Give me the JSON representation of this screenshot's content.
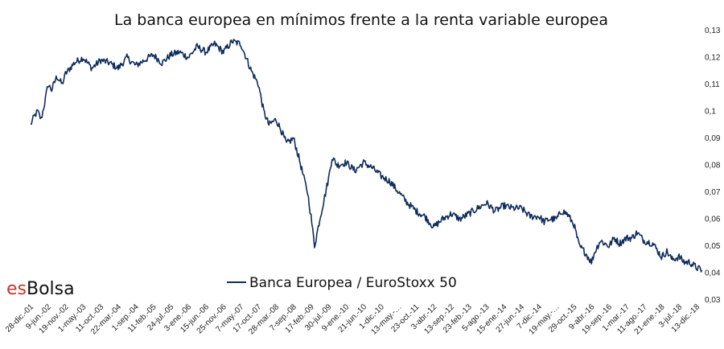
{
  "logo": {
    "prefix": "es",
    "suffix": "Bolsa",
    "prefix_color": "#c0392b",
    "suffix_color": "#111111"
  },
  "chart_data": {
    "type": "line",
    "title": "La banca europea en mínimos frente a la renta variable europea",
    "legend": "Banca Europea / EuroStoxx 50",
    "legend_position": "bottom-center",
    "grid": false,
    "y_axis_position": "right",
    "ylim": [
      0.03,
      0.13
    ],
    "yticks": [
      "0,13",
      "0,12",
      "0,11",
      "0,1",
      "0,09",
      "0,08",
      "0,07",
      "0,06",
      "0,05",
      "0,04",
      "0,03"
    ],
    "xticks": [
      "28-dic.-01",
      "9-jun.-02",
      "19-nov.-02",
      "1-may.-03",
      "11-oct.-03",
      "22-mar.-04",
      "1-sep.-04",
      "11-feb.-05",
      "24-jul.-05",
      "3-ene.-06",
      "15-jun.-06",
      "25-nov.-06",
      "7-may.-07",
      "17-oct.-07",
      "28-mar.-08",
      "7-sep.-08",
      "17-feb.-09",
      "30-jul.-09",
      "9-ene.-10",
      "21-jun.-10",
      "1-dic.-10",
      "13-may.-…",
      "23-oct.-11",
      "3-abr.-12",
      "13-sep.-12",
      "23-feb.-13",
      "5-ago.-13",
      "15-ene.-14",
      "27-jun.-14",
      "7-dic.-14",
      "19-may.-…",
      "29-oct.-15",
      "9-abr.-16",
      "19-sep.-16",
      "1-mar.-17",
      "11-ago.-17",
      "21-ene.-18",
      "3-jul.-18",
      "13-dic.-18"
    ],
    "series": [
      {
        "name": "Banca Europea / EuroStoxx 50",
        "color": "#0f2c5c",
        "x": [
          0,
          0.2,
          0.4,
          0.6,
          0.8,
          1.0,
          1.2,
          1.5,
          1.8,
          2.0,
          2.5,
          3.0,
          3.5,
          4.0,
          4.5,
          5.0,
          5.5,
          6.0,
          6.5,
          7.0,
          7.5,
          8.0,
          8.5,
          9.0,
          9.5,
          10.0,
          10.5,
          11.0,
          11.5,
          12.0,
          12.3,
          12.6,
          13.0,
          13.3,
          13.6,
          14.0,
          14.3,
          14.6,
          15.0,
          15.3,
          15.6,
          15.8,
          16.0,
          16.2,
          16.5,
          17.0,
          17.2,
          17.5,
          18.0,
          18.5,
          19.0,
          19.5,
          20.0,
          20.5,
          21.0,
          21.5,
          22.0,
          22.5,
          23.0,
          23.5,
          24.0,
          24.5,
          25.0,
          25.5,
          26.0,
          26.5,
          27.0,
          27.5,
          28.0,
          28.5,
          29.0,
          29.3,
          29.6,
          30.0,
          30.3,
          30.6,
          31.0,
          31.3,
          31.6,
          32.0,
          32.2,
          32.5,
          33.0,
          33.3,
          33.6,
          34.0,
          34.3,
          34.6,
          35.0,
          35.5,
          36.0,
          36.3,
          36.6,
          37.0,
          37.3,
          37.6,
          38.0,
          38.3
        ],
        "values": [
          0.095,
          0.098,
          0.1,
          0.097,
          0.103,
          0.11,
          0.108,
          0.113,
          0.11,
          0.114,
          0.118,
          0.12,
          0.116,
          0.119,
          0.118,
          0.116,
          0.12,
          0.117,
          0.119,
          0.121,
          0.118,
          0.121,
          0.122,
          0.12,
          0.124,
          0.122,
          0.125,
          0.122,
          0.126,
          0.125,
          0.12,
          0.115,
          0.11,
          0.1,
          0.095,
          0.097,
          0.093,
          0.088,
          0.09,
          0.083,
          0.075,
          0.07,
          0.061,
          0.05,
          0.06,
          0.075,
          0.083,
          0.08,
          0.081,
          0.078,
          0.081,
          0.079,
          0.076,
          0.074,
          0.07,
          0.066,
          0.063,
          0.061,
          0.057,
          0.06,
          0.062,
          0.06,
          0.062,
          0.064,
          0.066,
          0.063,
          0.065,
          0.064,
          0.064,
          0.061,
          0.061,
          0.059,
          0.06,
          0.06,
          0.063,
          0.062,
          0.058,
          0.05,
          0.048,
          0.044,
          0.048,
          0.052,
          0.05,
          0.053,
          0.051,
          0.053,
          0.053,
          0.055,
          0.052,
          0.051,
          0.046,
          0.048,
          0.045,
          0.046,
          0.044,
          0.044,
          0.042,
          0.041
        ]
      }
    ]
  }
}
